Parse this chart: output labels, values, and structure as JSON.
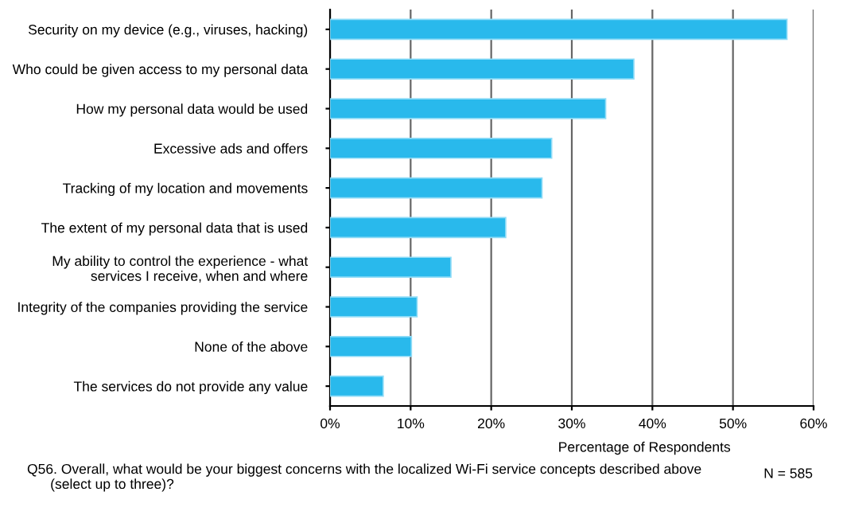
{
  "chart_data": {
    "type": "bar",
    "orientation": "horizontal",
    "categories": [
      "Security on my device (e.g., viruses, hacking)",
      "Who could be given access to my personal data",
      "How my personal data would be used",
      "Excessive ads and offers",
      "Tracking of my location and movements",
      "The extent of my personal data that is used",
      "My ability to control the experience - what\nservices I receive, when and where",
      "Integrity of the companies providing the service",
      "None of the above",
      "The services do not provide any value"
    ],
    "values": [
      56.7,
      37.7,
      34.2,
      27.5,
      26.3,
      21.8,
      15.0,
      10.8,
      10.1,
      6.6
    ],
    "color": "#29b9ec",
    "xlabel": "Percentage of Respondents",
    "xlim": [
      0,
      60
    ],
    "xticks": [
      {
        "value": 0,
        "label": "0%"
      },
      {
        "value": 10,
        "label": "10%"
      },
      {
        "value": 20,
        "label": "20%"
      },
      {
        "value": 30,
        "label": "30%"
      },
      {
        "value": 40,
        "label": "40%"
      },
      {
        "value": 50,
        "label": "50%"
      },
      {
        "value": 60,
        "label": "60%"
      }
    ],
    "grid": "x",
    "annotations": [
      "Q56. Overall, what would be your biggest concerns with the localized Wi-Fi service concepts described above\n      (select up to three)?",
      "N = 585"
    ]
  }
}
